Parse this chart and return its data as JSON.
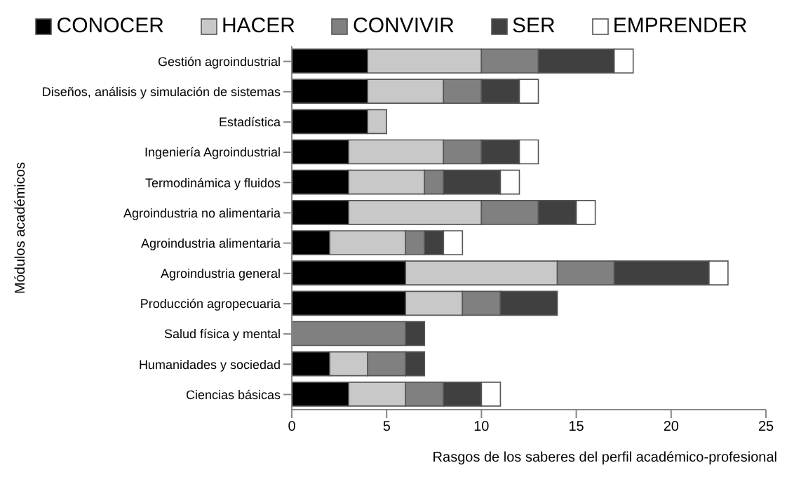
{
  "chart_data": {
    "type": "bar",
    "orientation": "horizontal",
    "stacked": true,
    "ylabel": "Módulos académicos",
    "xlabel": "Rasgos de los saberes del perfil académico-profesional",
    "legend": "top",
    "grid": false,
    "xlim": [
      0,
      25
    ],
    "xticks": [
      0,
      5,
      10,
      15,
      20,
      25
    ],
    "categories": [
      "Gestión agroindustrial",
      "Diseños, análisis y simulación de sistemas",
      "Estadística",
      "Ingeniería Agroindustrial",
      "Termodinámica y fluidos",
      "Agroindustria no alimentaria",
      "Agroindustria alimentaria",
      "Agroindustria general",
      "Producción agropecuaria",
      "Salud física y mental",
      "Humanidades y sociedad",
      "Ciencias básicas"
    ],
    "series": [
      {
        "name": "CONOCER",
        "color": "#000000",
        "values": [
          4,
          4,
          4,
          3,
          3,
          3,
          2,
          6,
          6,
          0,
          2,
          3
        ]
      },
      {
        "name": "HACER",
        "color": "#c8c8c8",
        "values": [
          6,
          4,
          1,
          5,
          4,
          7,
          4,
          8,
          3,
          0,
          2,
          3
        ]
      },
      {
        "name": "CONVIVIR",
        "color": "#808080",
        "values": [
          3,
          2,
          0,
          2,
          1,
          3,
          1,
          3,
          2,
          6,
          2,
          2
        ]
      },
      {
        "name": "SER",
        "color": "#404040",
        "values": [
          4,
          2,
          0,
          2,
          3,
          2,
          1,
          5,
          3,
          1,
          1,
          2
        ]
      },
      {
        "name": "EMPRENDER",
        "color": "#ffffff",
        "values": [
          1,
          1,
          0,
          1,
          1,
          1,
          1,
          1,
          0,
          0,
          0,
          1
        ]
      }
    ]
  }
}
